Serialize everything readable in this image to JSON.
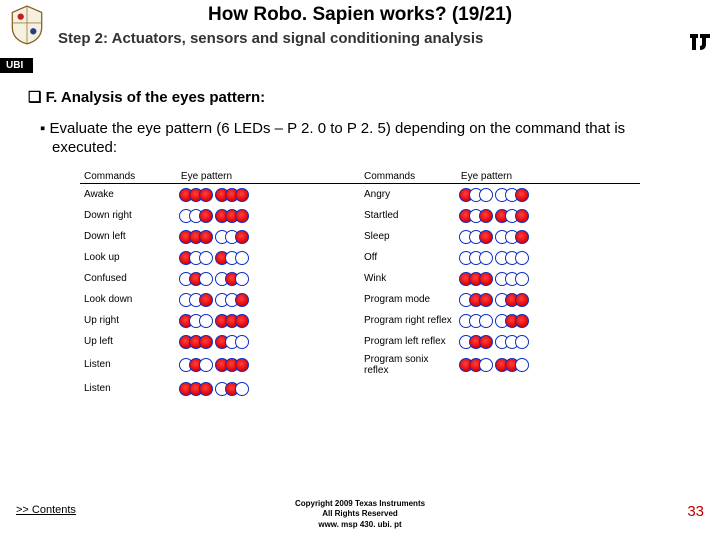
{
  "header": {
    "title": "How Robo. Sapien works? (19/21)",
    "subtitle": "Step 2: Actuators, sensors and signal conditioning analysis",
    "ubi": "UBI"
  },
  "section": {
    "prefix": "❑ F.",
    "heading": "Analysis of the eyes pattern:",
    "bullet_mark": "▪",
    "bullet": "Evaluate the eye pattern (6 LEDs – P 2. 0 to P 2. 5) depending on the command that is executed:"
  },
  "table": {
    "headers": [
      "Commands",
      "Eye pattern",
      "Commands",
      "Eye pattern"
    ],
    "rows": [
      {
        "c1": "Awake",
        "p1": [
          [
            1,
            1,
            1
          ],
          [
            1,
            1,
            1
          ]
        ],
        "c2": "Angry",
        "p2": [
          [
            1,
            0,
            0
          ],
          [
            0,
            0,
            1
          ]
        ]
      },
      {
        "c1": "Down right",
        "p1": [
          [
            0,
            0,
            1
          ],
          [
            1,
            1,
            1
          ]
        ],
        "c2": "Startled",
        "p2": [
          [
            1,
            0,
            1
          ],
          [
            1,
            0,
            1
          ]
        ]
      },
      {
        "c1": "Down left",
        "p1": [
          [
            1,
            1,
            1
          ],
          [
            0,
            0,
            1
          ]
        ],
        "c2": "Sleep",
        "p2": [
          [
            0,
            0,
            1
          ],
          [
            0,
            0,
            1
          ]
        ]
      },
      {
        "c1": "Look up",
        "p1": [
          [
            1,
            0,
            0
          ],
          [
            1,
            0,
            0
          ]
        ],
        "c2": "Off",
        "p2": [
          [
            0,
            0,
            0
          ],
          [
            0,
            0,
            0
          ]
        ]
      },
      {
        "c1": "Confused",
        "p1": [
          [
            0,
            1,
            0
          ],
          [
            0,
            1,
            0
          ]
        ],
        "c2": "Wink",
        "p2": [
          [
            1,
            1,
            1
          ],
          [
            0,
            0,
            0
          ]
        ]
      },
      {
        "c1": "Look down",
        "p1": [
          [
            0,
            0,
            1
          ],
          [
            0,
            0,
            1
          ]
        ],
        "c2": "Program mode",
        "p2": [
          [
            0,
            1,
            1
          ],
          [
            0,
            1,
            1
          ]
        ]
      },
      {
        "c1": "Up right",
        "p1": [
          [
            1,
            0,
            0
          ],
          [
            1,
            1,
            1
          ]
        ],
        "c2": "Program right reflex",
        "p2": [
          [
            0,
            0,
            0
          ],
          [
            0,
            1,
            1
          ]
        ]
      },
      {
        "c1": "Up left",
        "p1": [
          [
            1,
            1,
            1
          ],
          [
            1,
            0,
            0
          ]
        ],
        "c2": "Program left reflex",
        "p2": [
          [
            0,
            1,
            1
          ],
          [
            0,
            0,
            0
          ]
        ]
      },
      {
        "c1": "Listen",
        "p1": [
          [
            0,
            1,
            0
          ],
          [
            1,
            1,
            1
          ]
        ],
        "c2": "Program sonix reflex",
        "p2": [
          [
            1,
            1,
            0
          ],
          [
            1,
            1,
            0
          ]
        ]
      },
      {
        "c1": "Listen",
        "p1": [
          [
            1,
            1,
            1
          ],
          [
            0,
            1,
            0
          ]
        ],
        "c2": "",
        "p2": null
      }
    ]
  },
  "footer": {
    "contents": ">> Contents",
    "copyright_l1": "Copyright  2009 Texas Instruments",
    "copyright_l2": "All Rights Reserved",
    "url": "www. msp 430. ubi. pt",
    "page": "33"
  }
}
